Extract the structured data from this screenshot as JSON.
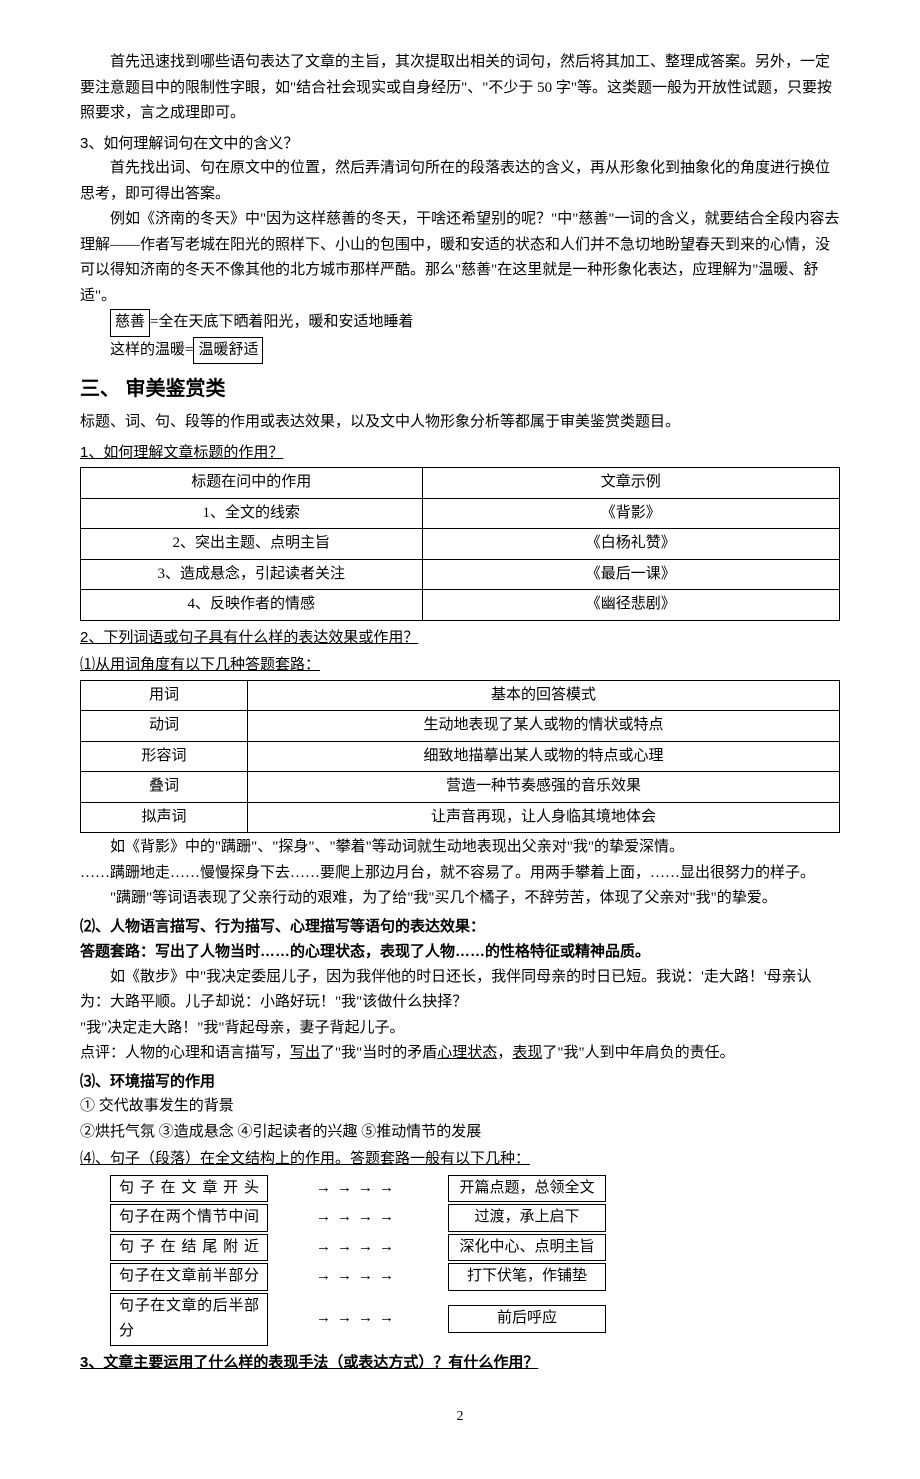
{
  "para1": "首先迅速找到哪些语句表达了文章的主旨，其次提取出相关的词句，然后将其加工、整理成答案。另外，一定要注意题目中的限制性字眼，如\"结合社会现实或自身经历\"、\"不少于 50 字\"等。这类题一般为开放性试题，只要按照要求，言之成理即可。",
  "q3_title": "3、如何理解词句在文中的含义？",
  "q3_p1": "首先找出词、句在原文中的位置，然后弄清词句所在的段落表达的含义，再从形象化到抽象化的角度进行换位思考，即可得出答案。",
  "q3_p2": "例如《济南的冬天》中\"因为这样慈善的冬天，干啥还希望别的呢？\"中\"慈善\"一词的含义，就要结合全段内容去理解——作者写老城在阳光的照样下、小山的包围中，暖和安适的状态和人们并不急切地盼望春天到来的心情，没可以得知济南的冬天不像其他的北方城市那样严酷。那么\"慈善\"在这里就是一种形象化表达，应理解为\"温暖、舒适\"。",
  "box1_a": "慈善",
  "box1_rest": "=全在天底下晒着阳光，暖和安适地睡着",
  "box2_pre": "这样的温暖=",
  "box2_b": "温暖舒适",
  "h2": "三、    审美鉴赏类",
  "h2_sub": "标题、词、句、段等的作用或表达效果，以及文中人物形象分析等都属于审美鉴赏类题目。",
  "s1_title": "1、如何理解文章标题的作用？",
  "table1": {
    "headers": [
      "标题在问中的作用",
      "文章示例"
    ],
    "rows": [
      [
        "1、全文的线索",
        "《背影》"
      ],
      [
        "2、突出主题、点明主旨",
        "《白杨礼赞》"
      ],
      [
        "3、造成悬念，引起读者关注",
        "《最后一课》"
      ],
      [
        "4、反映作者的情感",
        "《幽径悲剧》"
      ]
    ]
  },
  "s2_title": "2、下列词语或句子具有什么样的表达效果或作用？",
  "s2_sub1": "⑴从用词角度有以下几种答题套路：",
  "table2": {
    "headers": [
      "用词",
      "基本的回答模式"
    ],
    "rows": [
      [
        "动词",
        "生动地表现了某人或物的情状或特点"
      ],
      [
        "形容词",
        "细致地描摹出某人或物的特点或心理"
      ],
      [
        "叠词",
        "营造一种节奏感强的音乐效果"
      ],
      [
        "拟声词",
        "让声音再现，让人身临其境地体会"
      ]
    ]
  },
  "s2_p1": "如《背影》中的\"蹒跚\"、\"探身\"、\"攀着\"等动词就生动地表现出父亲对\"我\"的挚爱深情。",
  "s2_p2": "……蹒跚地走……慢慢探身下去……要爬上那边月台，就不容易了。用两手攀着上面，……显出很努力的样子。",
  "s2_p3": "\"蹒跚\"等词语表现了父亲行动的艰难，为了给\"我\"买几个橘子，不辞劳苦，体现了父亲对\"我\"的挚爱。",
  "s2_sub2": "⑵、人物语言描写、行为描写、心理描写等语句的表达效果：",
  "s2_sub2b": "答题套路：写出了人物当时……的心理状态，表现了人物……的性格特征或精神品质。",
  "s2_p4": "如《散步》中\"我决定委屈儿子，因为我伴他的时日还长，我伴同母亲的时日已短。我说：'走大路！'母亲认为：大路平顺。儿子却说：小路好玩！\"我\"该做什么抉择？",
  "s2_p5": "\"我\"决定走大路！\"我\"背起母亲，妻子背起儿子。",
  "s2_p6_a": "点评：人物的心理和语言描写，",
  "s2_p6_b": "写出",
  "s2_p6_c": "了\"我\"当时的矛盾",
  "s2_p6_d": "心理状态",
  "s2_p6_e": "，",
  "s2_p6_f": "表现",
  "s2_p6_g": "了\"我\"人到中年肩负的责任。",
  "s2_sub3": "⑶、环境描写的作用",
  "env1": "① 交代故事发生的背景",
  "env2": "②烘托气氛        ③造成悬念        ④引起读者的兴趣    ⑤推动情节的发展",
  "s2_sub4": "⑷、句子（段落）在全文结构上的作用。答题套路一般有以下几种：",
  "flows": [
    {
      "left": "句子在文章开头",
      "right": "开篇点题，总领全文"
    },
    {
      "left": "句子在两个情节中间",
      "right": "过渡，承上启下"
    },
    {
      "left": "句子在结尾附近",
      "right": "深化中心、点明主旨"
    },
    {
      "left": "句子在文章前半部分",
      "right": "打下伏笔，作铺垫"
    },
    {
      "left": "句子在文章的后半部分",
      "right": "前后呼应"
    }
  ],
  "arrow": "→→→→",
  "s3_title": "3、文章主要运用了什么样的表现手法（或表达方式）？有什么作用？",
  "page": "2"
}
